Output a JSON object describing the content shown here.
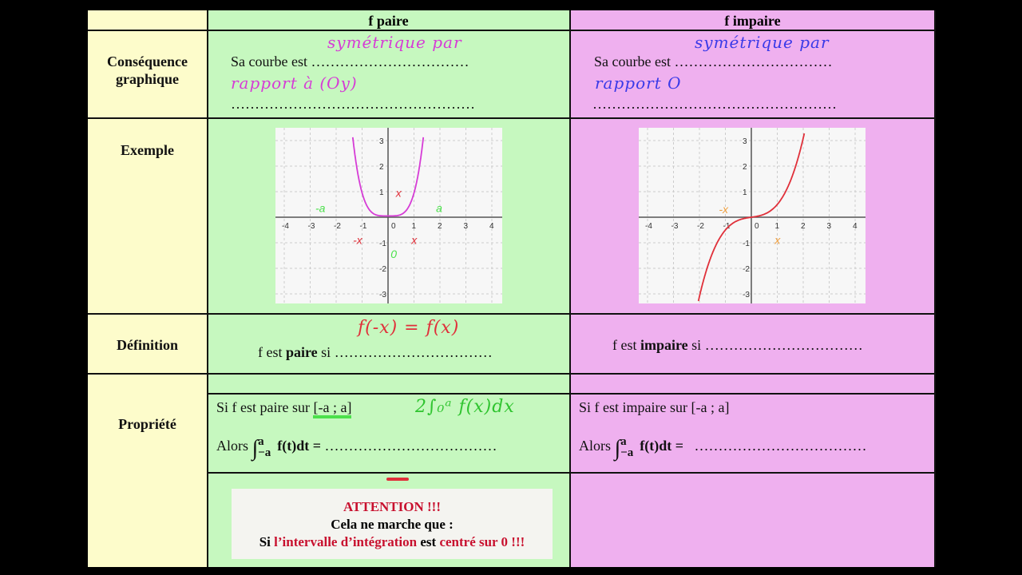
{
  "header": {
    "col_paire": "f paire",
    "col_impaire": "f impaire"
  },
  "rows": {
    "consequence": {
      "label_1": "Conséquence",
      "label_2": "graphique",
      "paire_prefix": "Sa courbe est",
      "paire_dots_1": "……………………………",
      "paire_dots_2": "……………………………………………",
      "paire_hand_1": "symétrique par",
      "paire_hand_2": "rapport à (Oy)",
      "impaire_prefix": "Sa courbe est",
      "impaire_dots_1": "……………………………",
      "impaire_dots_2": "……………………………………………",
      "impaire_hand_1": "symétrique par",
      "impaire_hand_2": "rapport O"
    },
    "exemple": {
      "label": "Exemple",
      "x_ticks": [
        "-4",
        "-3",
        "-2",
        "-1",
        "0",
        "1",
        "2",
        "3",
        "4"
      ],
      "y_ticks": [
        "3",
        "2",
        "1",
        "-1",
        "-2",
        "-3"
      ],
      "paire_annotations": {
        "minus_a": "-a",
        "a": "a",
        "minus_x": "-x",
        "x": "x",
        "arrow_x": "x",
        "zero": "0"
      },
      "impaire_annotations": {
        "minus_x": "-x",
        "x": "x"
      },
      "paire_curve_color": "#d63cd6",
      "impaire_curve_color": "#e0303a"
    },
    "definition": {
      "label": "Définition",
      "paire_prefix": "f est ",
      "paire_bold": "paire",
      "paire_si": " si ",
      "paire_dots": "……………………………",
      "paire_hand": "f(-x) = f(x)",
      "impaire_prefix": "f est ",
      "impaire_bold": "impaire",
      "impaire_si": " si ",
      "impaire_dots": "……………………………"
    },
    "propriete": {
      "label": "Propriété",
      "paire_line1": "Si f est paire sur ",
      "paire_interval": "[-a ; a]",
      "alors": "Alors ",
      "integral": "∫",
      "upper": "a",
      "lower": "−a",
      "integrand": "f(t)dt = ",
      "paire_dots": "………………………………",
      "paire_hand": "2∫₀ᵃ f(x)dx",
      "impaire_line1": "Si f est impaire sur [-a ; a]",
      "impaire_dots": "………………………………"
    },
    "attention": {
      "title": "ATTENTION !!!",
      "line2": "Cela ne marche que :",
      "line3_a": "Si ",
      "line3_red1": "l’intervalle d’intégration",
      "line3_b": " est ",
      "line3_red2": "centré sur 0 !!!"
    }
  },
  "colors": {
    "label_col": "#fdfccb",
    "paire_col": "#c6f8bf",
    "impaire_col": "#efb0ef",
    "pink_ink": "#d63cd6",
    "blue_ink": "#3a3ae8",
    "red_ink": "#e0303a",
    "green_ink": "#4be04b",
    "orange_ink": "#f0a040",
    "alert_red": "#c8102e"
  }
}
